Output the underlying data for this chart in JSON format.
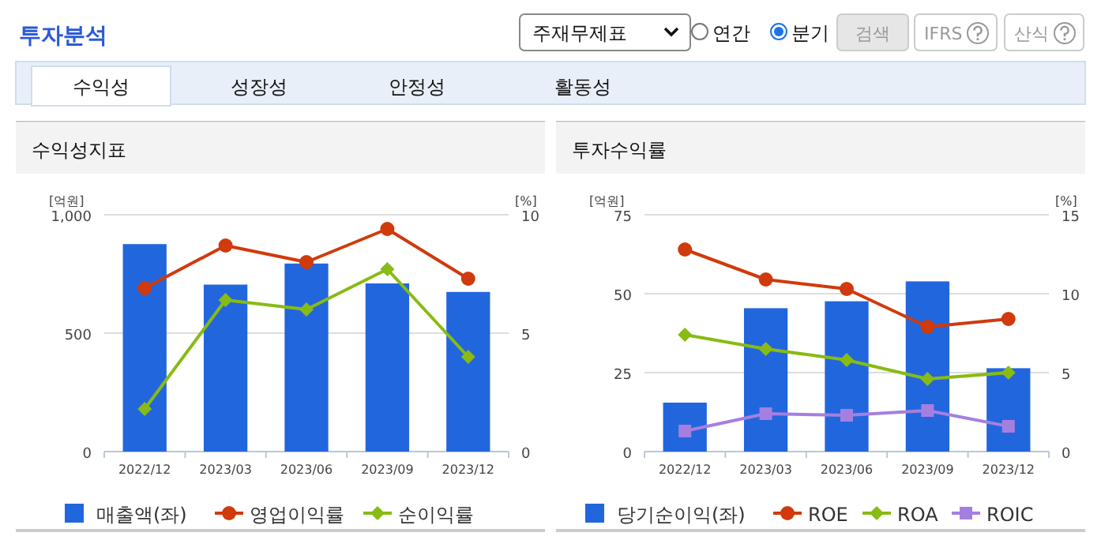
{
  "chart_data": [
    {
      "type": "other",
      "title": "투자분석",
      "annotations": [
        "주재무제표",
        "연간",
        "분기",
        "검색",
        "IFRS",
        "산식",
        "수익성",
        "성장성",
        "안정성",
        "활동성"
      ]
    },
    {
      "type": "bar",
      "title": "수익성지표",
      "ylabel": "[억원]",
      "y2label": "[%]",
      "categories": [
        "2022/12",
        "2023/03",
        "2023/06",
        "2023/09",
        "2023/12"
      ],
      "series": [
        {
          "name": "매출액(좌)",
          "type": "bar",
          "color": "#2266dd",
          "values": [
            876,
            705,
            794,
            710,
            674
          ]
        },
        {
          "name": "영업이익률",
          "type": "line",
          "axis": "y2",
          "color": "#d03a0c",
          "marker": "circle",
          "values": [
            6.9,
            8.7,
            8.0,
            9.4,
            7.3
          ]
        },
        {
          "name": "순이익률",
          "type": "line",
          "axis": "y2",
          "color": "#88bb14",
          "marker": "diamond",
          "values": [
            1.8,
            6.4,
            6.0,
            7.7,
            4.0
          ]
        }
      ],
      "ylim": [
        0,
        1000
      ],
      "yticks": [
        0,
        500,
        {
          "value": 1000,
          "label": "1,000"
        }
      ],
      "y2lim": [
        0,
        10
      ],
      "y2ticks": [
        0,
        5,
        10
      ],
      "grid": "y",
      "legend": "bottom"
    },
    {
      "type": "bar",
      "title": "투자수익률",
      "ylabel": "[억원]",
      "y2label": "[%]",
      "categories": [
        "2022/12",
        "2023/03",
        "2023/06",
        "2023/09",
        "2023/12"
      ],
      "series": [
        {
          "name": "당기순이익(좌)",
          "type": "bar",
          "color": "#2266dd",
          "values": [
            15.5,
            45.4,
            47.6,
            53.9,
            26.4
          ]
        },
        {
          "name": "ROE",
          "type": "line",
          "axis": "y2",
          "color": "#d03a0c",
          "marker": "circle",
          "values": [
            12.8,
            10.9,
            10.3,
            7.9,
            8.4
          ]
        },
        {
          "name": "ROA",
          "type": "line",
          "axis": "y2",
          "color": "#88bb14",
          "marker": "diamond",
          "values": [
            7.4,
            6.5,
            5.8,
            4.6,
            5.0
          ]
        },
        {
          "name": "ROIC",
          "type": "line",
          "axis": "y2",
          "color": "#a57fe0",
          "marker": "square",
          "values": [
            1.3,
            2.4,
            2.3,
            2.6,
            1.6
          ]
        }
      ],
      "ylim": [
        0,
        75
      ],
      "yticks": [
        0,
        25,
        50,
        75
      ],
      "y2lim": [
        0,
        15
      ],
      "y2ticks": [
        0,
        5,
        10,
        15
      ],
      "grid": "y",
      "legend": "bottom"
    }
  ]
}
